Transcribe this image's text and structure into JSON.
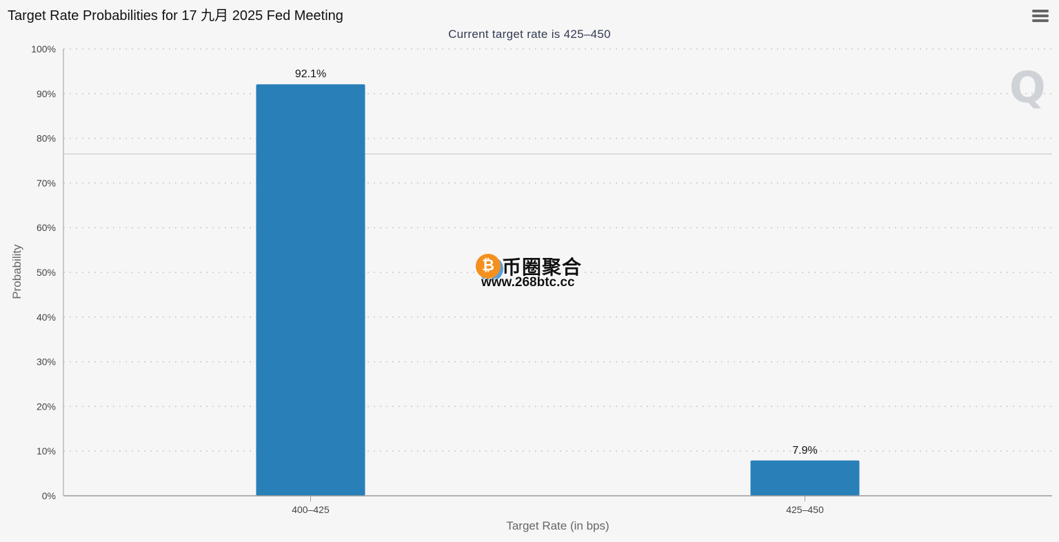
{
  "header": {
    "title": "Target Rate Probabilities for 17 九月 2025 Fed Meeting",
    "subtitle": "Current target rate is 425–450",
    "menu_icon": "hamburger-menu-icon"
  },
  "watermark": {
    "name": "币圈聚合",
    "url": "www.268btc.cc",
    "coin_glyph": "₿",
    "coin_icon": "bitcoin-icon"
  },
  "logo": {
    "letter": "Q"
  },
  "colors": {
    "bar": "#2980b9",
    "grid": "#c8c8c8",
    "axis": "#999999"
  },
  "chart_data": {
    "type": "bar",
    "title": "Target Rate Probabilities for 17 九月 2025 Fed Meeting",
    "subtitle": "Current target rate is 425–450",
    "categories": [
      "400–425",
      "425–450"
    ],
    "values": [
      92.1,
      7.9
    ],
    "data_labels": [
      "92.1%",
      "7.9%"
    ],
    "xlabel": "Target Rate (in bps)",
    "ylabel": "Probability",
    "ylim": [
      0,
      100
    ],
    "yticks": [
      0,
      10,
      20,
      30,
      40,
      50,
      60,
      70,
      80,
      90,
      100
    ],
    "ytick_labels": [
      "0%",
      "10%",
      "20%",
      "30%",
      "40%",
      "50%",
      "60%",
      "70%",
      "80%",
      "90%",
      "100%"
    ],
    "grid": true,
    "grid_style": "dotted",
    "reference_line": 76.5,
    "legend": "none"
  }
}
